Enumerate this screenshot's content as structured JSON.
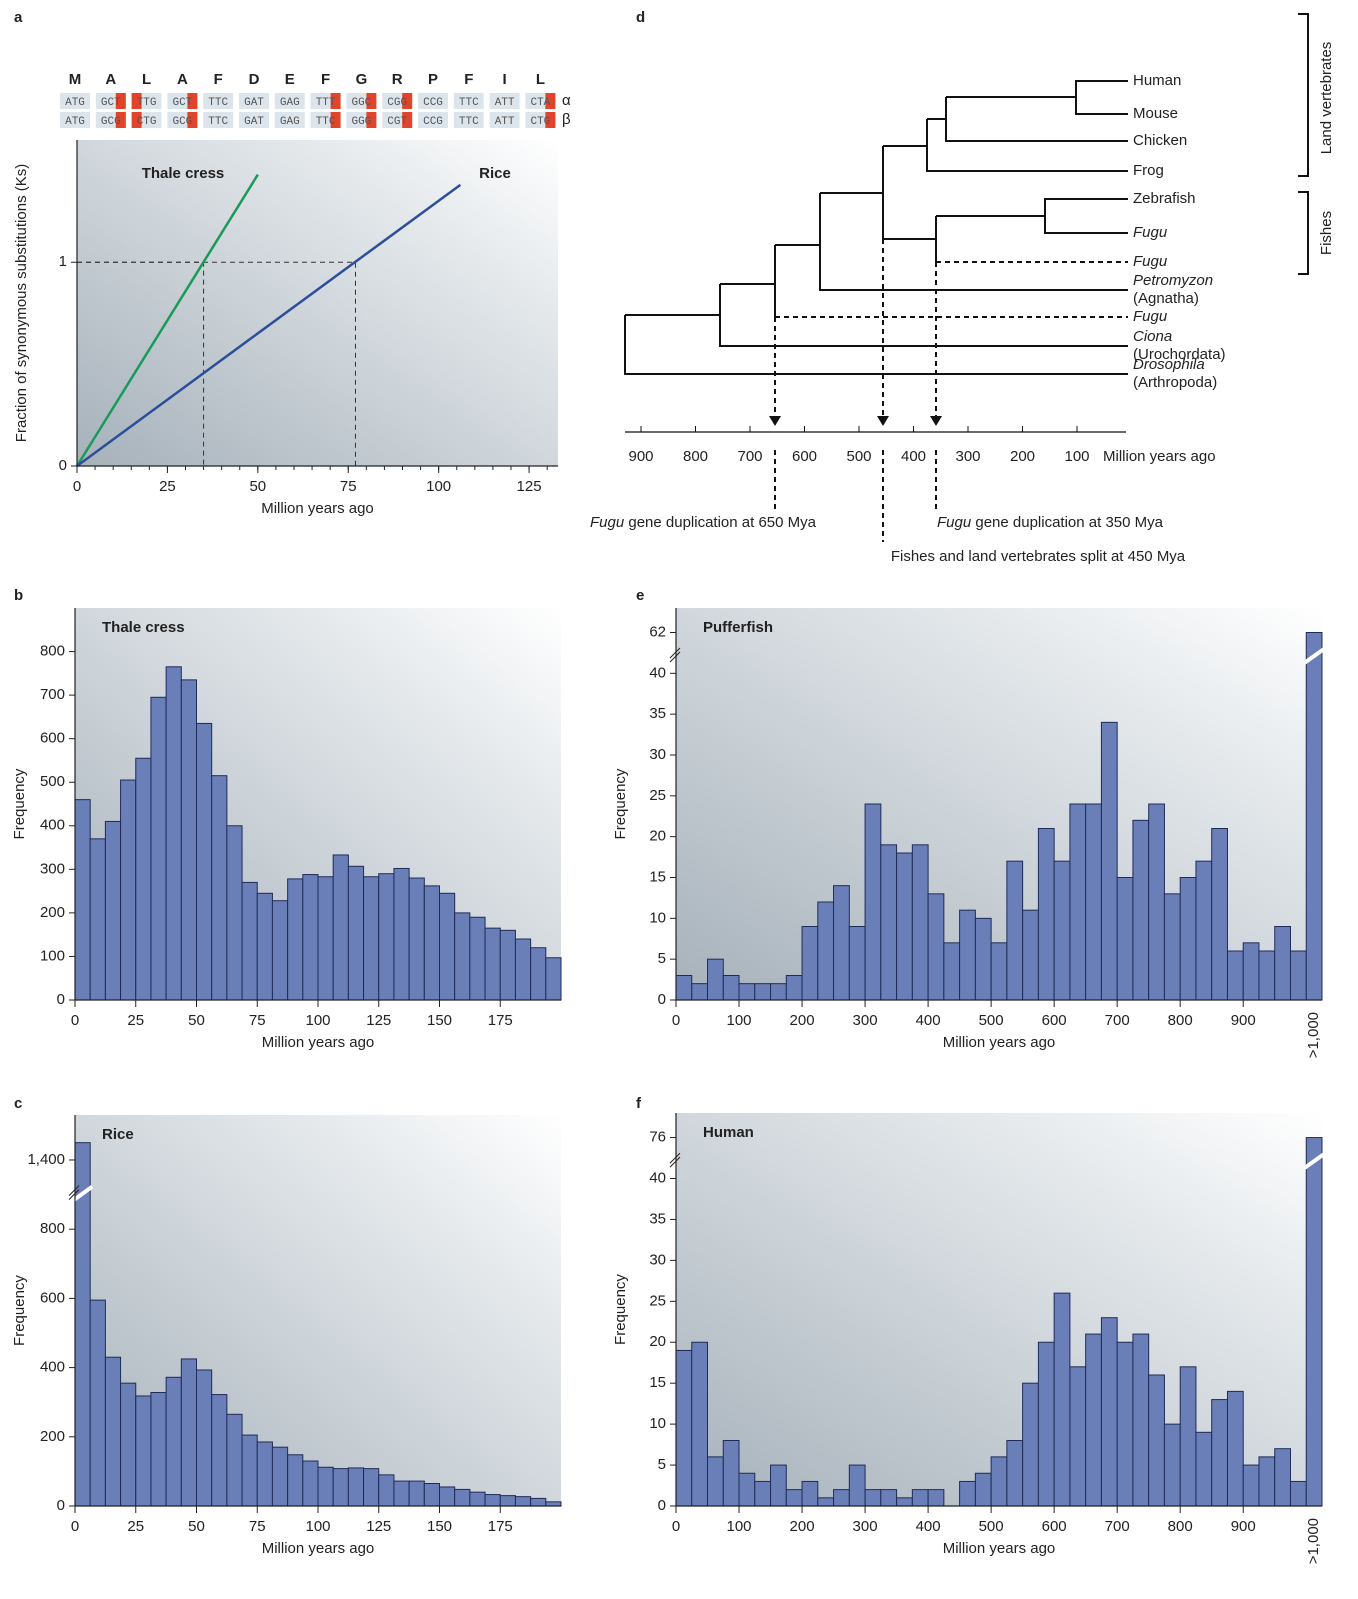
{
  "chart_data": [
    {
      "type": "line",
      "label": "a",
      "alignment": {
        "residues": [
          "M",
          "A",
          "L",
          "A",
          "F",
          "D",
          "E",
          "F",
          "G",
          "R",
          "P",
          "F",
          "I",
          "L"
        ],
        "rows": [
          {
            "name": "α",
            "codons": [
              "ATG",
              "GCT",
              "TTG",
              "GCT",
              "TTC",
              "GAT",
              "GAG",
              "TTT",
              "GGC",
              "CGG",
              "CCG",
              "TTC",
              "ATT",
              "CTA"
            ]
          },
          {
            "name": "β",
            "codons": [
              "ATG",
              "GCG",
              "CTG",
              "GCG",
              "TTC",
              "GAT",
              "GAG",
              "TTC",
              "GGG",
              "CGT",
              "CCG",
              "TTC",
              "ATT",
              "CTG"
            ]
          }
        ]
      },
      "xlabel": "Million years ago",
      "ylabel": "Fraction of synonymous substitutions (Ks)",
      "xlim": [
        0,
        133
      ],
      "xticks": [
        0,
        25,
        50,
        75,
        100,
        125
      ],
      "xminor_step": 5,
      "ylim": [
        0,
        1.6
      ],
      "yticks": [
        0,
        1
      ],
      "series": [
        {
          "name": "Thale cress",
          "color": "#1a9a5a",
          "x": [
            0,
            50
          ],
          "values": [
            0,
            1.43
          ]
        },
        {
          "name": "Rice",
          "color": "#2c4f9a",
          "x": [
            0,
            106
          ],
          "values": [
            0,
            1.38
          ]
        }
      ],
      "guides": [
        {
          "x": 35,
          "y": 1
        },
        {
          "x": 77,
          "y": 1
        }
      ]
    },
    {
      "type": "histogram",
      "label": "b",
      "title": "Thale cress",
      "xlabel": "Million years ago",
      "ylabel": "Frequency",
      "xlim": [
        0,
        200
      ],
      "xticks": [
        0,
        25,
        50,
        75,
        100,
        125,
        150,
        175
      ],
      "ylim": [
        0,
        900
      ],
      "yticks": [
        0,
        100,
        200,
        300,
        400,
        500,
        600,
        700,
        800
      ],
      "color": "#6a7fb8",
      "bins": [
        0,
        6.25,
        12.5,
        18.75,
        25,
        31.25,
        37.5,
        43.75,
        50,
        56.25,
        62.5,
        68.75,
        75,
        81.25,
        87.5,
        93.75,
        100,
        106.25,
        112.5,
        118.75,
        125,
        131.25,
        137.5,
        143.75,
        150,
        156.25,
        162.5,
        168.75,
        175,
        181.25,
        187.5,
        193.75,
        200
      ],
      "values": [
        460,
        370,
        410,
        505,
        555,
        695,
        765,
        735,
        635,
        515,
        400,
        270,
        245,
        228,
        278,
        288,
        283,
        333,
        307,
        283,
        290,
        302,
        280,
        262,
        245,
        200,
        190,
        165,
        160,
        140,
        120,
        97
      ]
    },
    {
      "type": "histogram",
      "label": "c",
      "title": "Rice",
      "xlabel": "Million years ago",
      "ylabel": "Frequency",
      "xlim": [
        0,
        200
      ],
      "xticks": [
        0,
        25,
        50,
        75,
        100,
        125,
        150,
        175
      ],
      "ylim": [
        0,
        1530
      ],
      "ybreak": [
        900,
        1300
      ],
      "yticks": [
        0,
        200,
        400,
        600,
        800,
        {
          "value": 1400,
          "label": "1,400"
        }
      ],
      "color": "#6a7fb8",
      "bins": [
        0,
        6.25,
        12.5,
        18.75,
        25,
        31.25,
        37.5,
        43.75,
        50,
        56.25,
        62.5,
        68.75,
        75,
        81.25,
        87.5,
        93.75,
        100,
        106.25,
        112.5,
        118.75,
        125,
        131.25,
        137.5,
        143.75,
        150,
        156.25,
        162.5,
        168.75,
        175,
        181.25,
        187.5,
        193.75,
        200
      ],
      "values": [
        1450,
        595,
        430,
        355,
        318,
        328,
        372,
        425,
        393,
        322,
        265,
        205,
        185,
        170,
        148,
        130,
        112,
        108,
        110,
        108,
        90,
        72,
        72,
        65,
        55,
        48,
        40,
        33,
        30,
        27,
        22,
        12
      ]
    },
    {
      "type": "histogram",
      "label": "e",
      "title": "Pufferfish",
      "xlabel": "Million years ago",
      "ylabel": "Frequency",
      "xlim": [
        0,
        1025
      ],
      "xticks": [
        0,
        100,
        200,
        300,
        400,
        500,
        600,
        700,
        800,
        900
      ],
      "ylim": [
        0,
        65
      ],
      "ybreak": [
        42,
        59
      ],
      "yticks": [
        0,
        5,
        10,
        15,
        20,
        25,
        30,
        35,
        40,
        62
      ],
      "color": "#6a7fb8",
      "bins": [
        0,
        25,
        50,
        75,
        100,
        125,
        150,
        175,
        200,
        225,
        250,
        275,
        300,
        325,
        350,
        375,
        400,
        425,
        450,
        475,
        500,
        525,
        550,
        575,
        600,
        625,
        650,
        675,
        700,
        725,
        750,
        775,
        800,
        825,
        850,
        875,
        900,
        925,
        950,
        975,
        1000
      ],
      "values": [
        3,
        2,
        5,
        3,
        2,
        2,
        2,
        3,
        9,
        12,
        14,
        9,
        24,
        19,
        18,
        19,
        13,
        7,
        11,
        10,
        7,
        17,
        11,
        21,
        17,
        24,
        24,
        34,
        15,
        22,
        24,
        13,
        15,
        17,
        21,
        6,
        7,
        6,
        9,
        6
      ],
      "overflow": {
        "label": ">1,000",
        "value": 62
      }
    },
    {
      "type": "histogram",
      "label": "f",
      "title": "Human",
      "xlabel": "Million years ago",
      "ylabel": "Frequency",
      "xlim": [
        0,
        1025
      ],
      "xticks": [
        0,
        100,
        200,
        300,
        400,
        500,
        600,
        700,
        800,
        900
      ],
      "ylim": [
        0,
        79
      ],
      "ybreak": [
        42,
        73
      ],
      "yticks": [
        0,
        5,
        10,
        15,
        20,
        25,
        30,
        35,
        40,
        76
      ],
      "color": "#6a7fb8",
      "bins": [
        0,
        25,
        50,
        75,
        100,
        125,
        150,
        175,
        200,
        225,
        250,
        275,
        300,
        325,
        350,
        375,
        400,
        425,
        450,
        475,
        500,
        525,
        550,
        575,
        600,
        625,
        650,
        675,
        700,
        725,
        750,
        775,
        800,
        825,
        850,
        875,
        900,
        925,
        950,
        975,
        1000
      ],
      "values": [
        19,
        20,
        6,
        8,
        4,
        3,
        5,
        2,
        3,
        1,
        2,
        5,
        2,
        2,
        1,
        2,
        2,
        0,
        3,
        4,
        6,
        8,
        15,
        20,
        26,
        17,
        21,
        23,
        20,
        21,
        16,
        10,
        17,
        9,
        13,
        14,
        5,
        6,
        7,
        3
      ],
      "overflow": {
        "label": ">1,000",
        "value": 76
      }
    }
  ],
  "tree": {
    "label": "d",
    "leaves": [
      {
        "name": "Human"
      },
      {
        "name": "Mouse"
      },
      {
        "name": "Chicken"
      },
      {
        "name": "Frog"
      },
      {
        "name": "Zebrafish"
      },
      {
        "name": "Fugu",
        "italic": true
      },
      {
        "name": "Fugu",
        "italic": true
      },
      {
        "name": "Petromyzon",
        "italic": true,
        "group": "(Agnatha)"
      },
      {
        "name": "Fugu",
        "italic": true
      },
      {
        "name": "Ciona",
        "italic": true,
        "group": "(Urochordata)"
      },
      {
        "name": "Drosophila",
        "italic": true,
        "group": "(Arthropoda)"
      }
    ],
    "clades": [
      "Land vertebrates",
      "Fishes"
    ],
    "axis": {
      "ticks": [
        900,
        800,
        700,
        600,
        500,
        400,
        300,
        200,
        100
      ],
      "label": "Million years ago"
    },
    "annotations": [
      {
        "italic": "Fugu",
        "text": "gene duplication at 650 Mya"
      },
      {
        "italic": "Fugu",
        "text": "gene duplication at 350 Mya"
      },
      {
        "text": "Fishes and land vertebrates split at 450 Mya"
      }
    ]
  }
}
